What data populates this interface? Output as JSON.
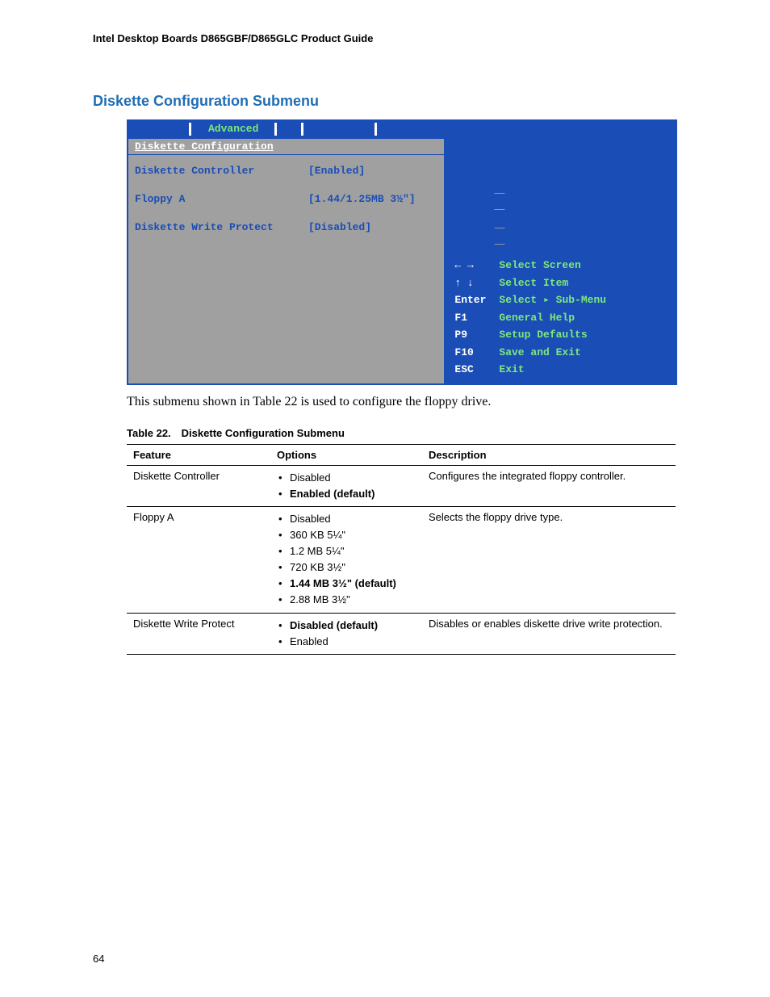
{
  "header": "Intel Desktop Boards D865GBF/D865GLC Product Guide",
  "section_title": "Diskette Configuration Submenu",
  "bios": {
    "tab": "Advanced",
    "subtitle": "Diskette Configuration",
    "rows": [
      {
        "label": "Diskette Controller",
        "value": "[Enabled]"
      },
      {
        "label": "Floppy A",
        "value": "[1.44/1.25MB 3½\"]"
      },
      {
        "label": "Diskette Write Protect",
        "value": "[Disabled]"
      }
    ],
    "nav": [
      {
        "key": "← →",
        "desc": "Select Screen"
      },
      {
        "key": "↑ ↓",
        "desc": "Select Item"
      },
      {
        "key": "Enter",
        "desc": "Select ▸ Sub-Menu"
      },
      {
        "key": "F1",
        "desc": "General Help"
      },
      {
        "key": "P9",
        "desc": "Setup Defaults"
      },
      {
        "key": "F10",
        "desc": "Save and Exit"
      },
      {
        "key": "ESC",
        "desc": "Exit"
      }
    ]
  },
  "caption": "This submenu shown in Table 22 is used to configure the floppy drive.",
  "table_title": "Table 22. Diskette Configuration Submenu",
  "table": {
    "headers": {
      "feature": "Feature",
      "options": "Options",
      "description": "Description"
    },
    "rows": [
      {
        "feature": "Diskette Controller",
        "options": [
          {
            "text": "Disabled",
            "bold": false
          },
          {
            "text": "Enabled (default)",
            "bold": true
          }
        ],
        "description": "Configures the integrated floppy controller."
      },
      {
        "feature": "Floppy A",
        "options": [
          {
            "text": "Disabled",
            "bold": false
          },
          {
            "text": "360 KB 5¼\"",
            "bold": false
          },
          {
            "text": "1.2 MB 5¼\"",
            "bold": false
          },
          {
            "text": "720 KB 3½\"",
            "bold": false
          },
          {
            "text": "1.44 MB 3½\" (default)",
            "bold": true
          },
          {
            "text": "2.88 MB 3½\"",
            "bold": false
          }
        ],
        "description": "Selects the floppy drive type."
      },
      {
        "feature": "Diskette Write Protect",
        "options": [
          {
            "text": "Disabled (default)",
            "bold": true
          },
          {
            "text": "Enabled",
            "bold": false
          }
        ],
        "description": "Disables or enables diskette drive write protection."
      }
    ]
  },
  "page_number": "64"
}
